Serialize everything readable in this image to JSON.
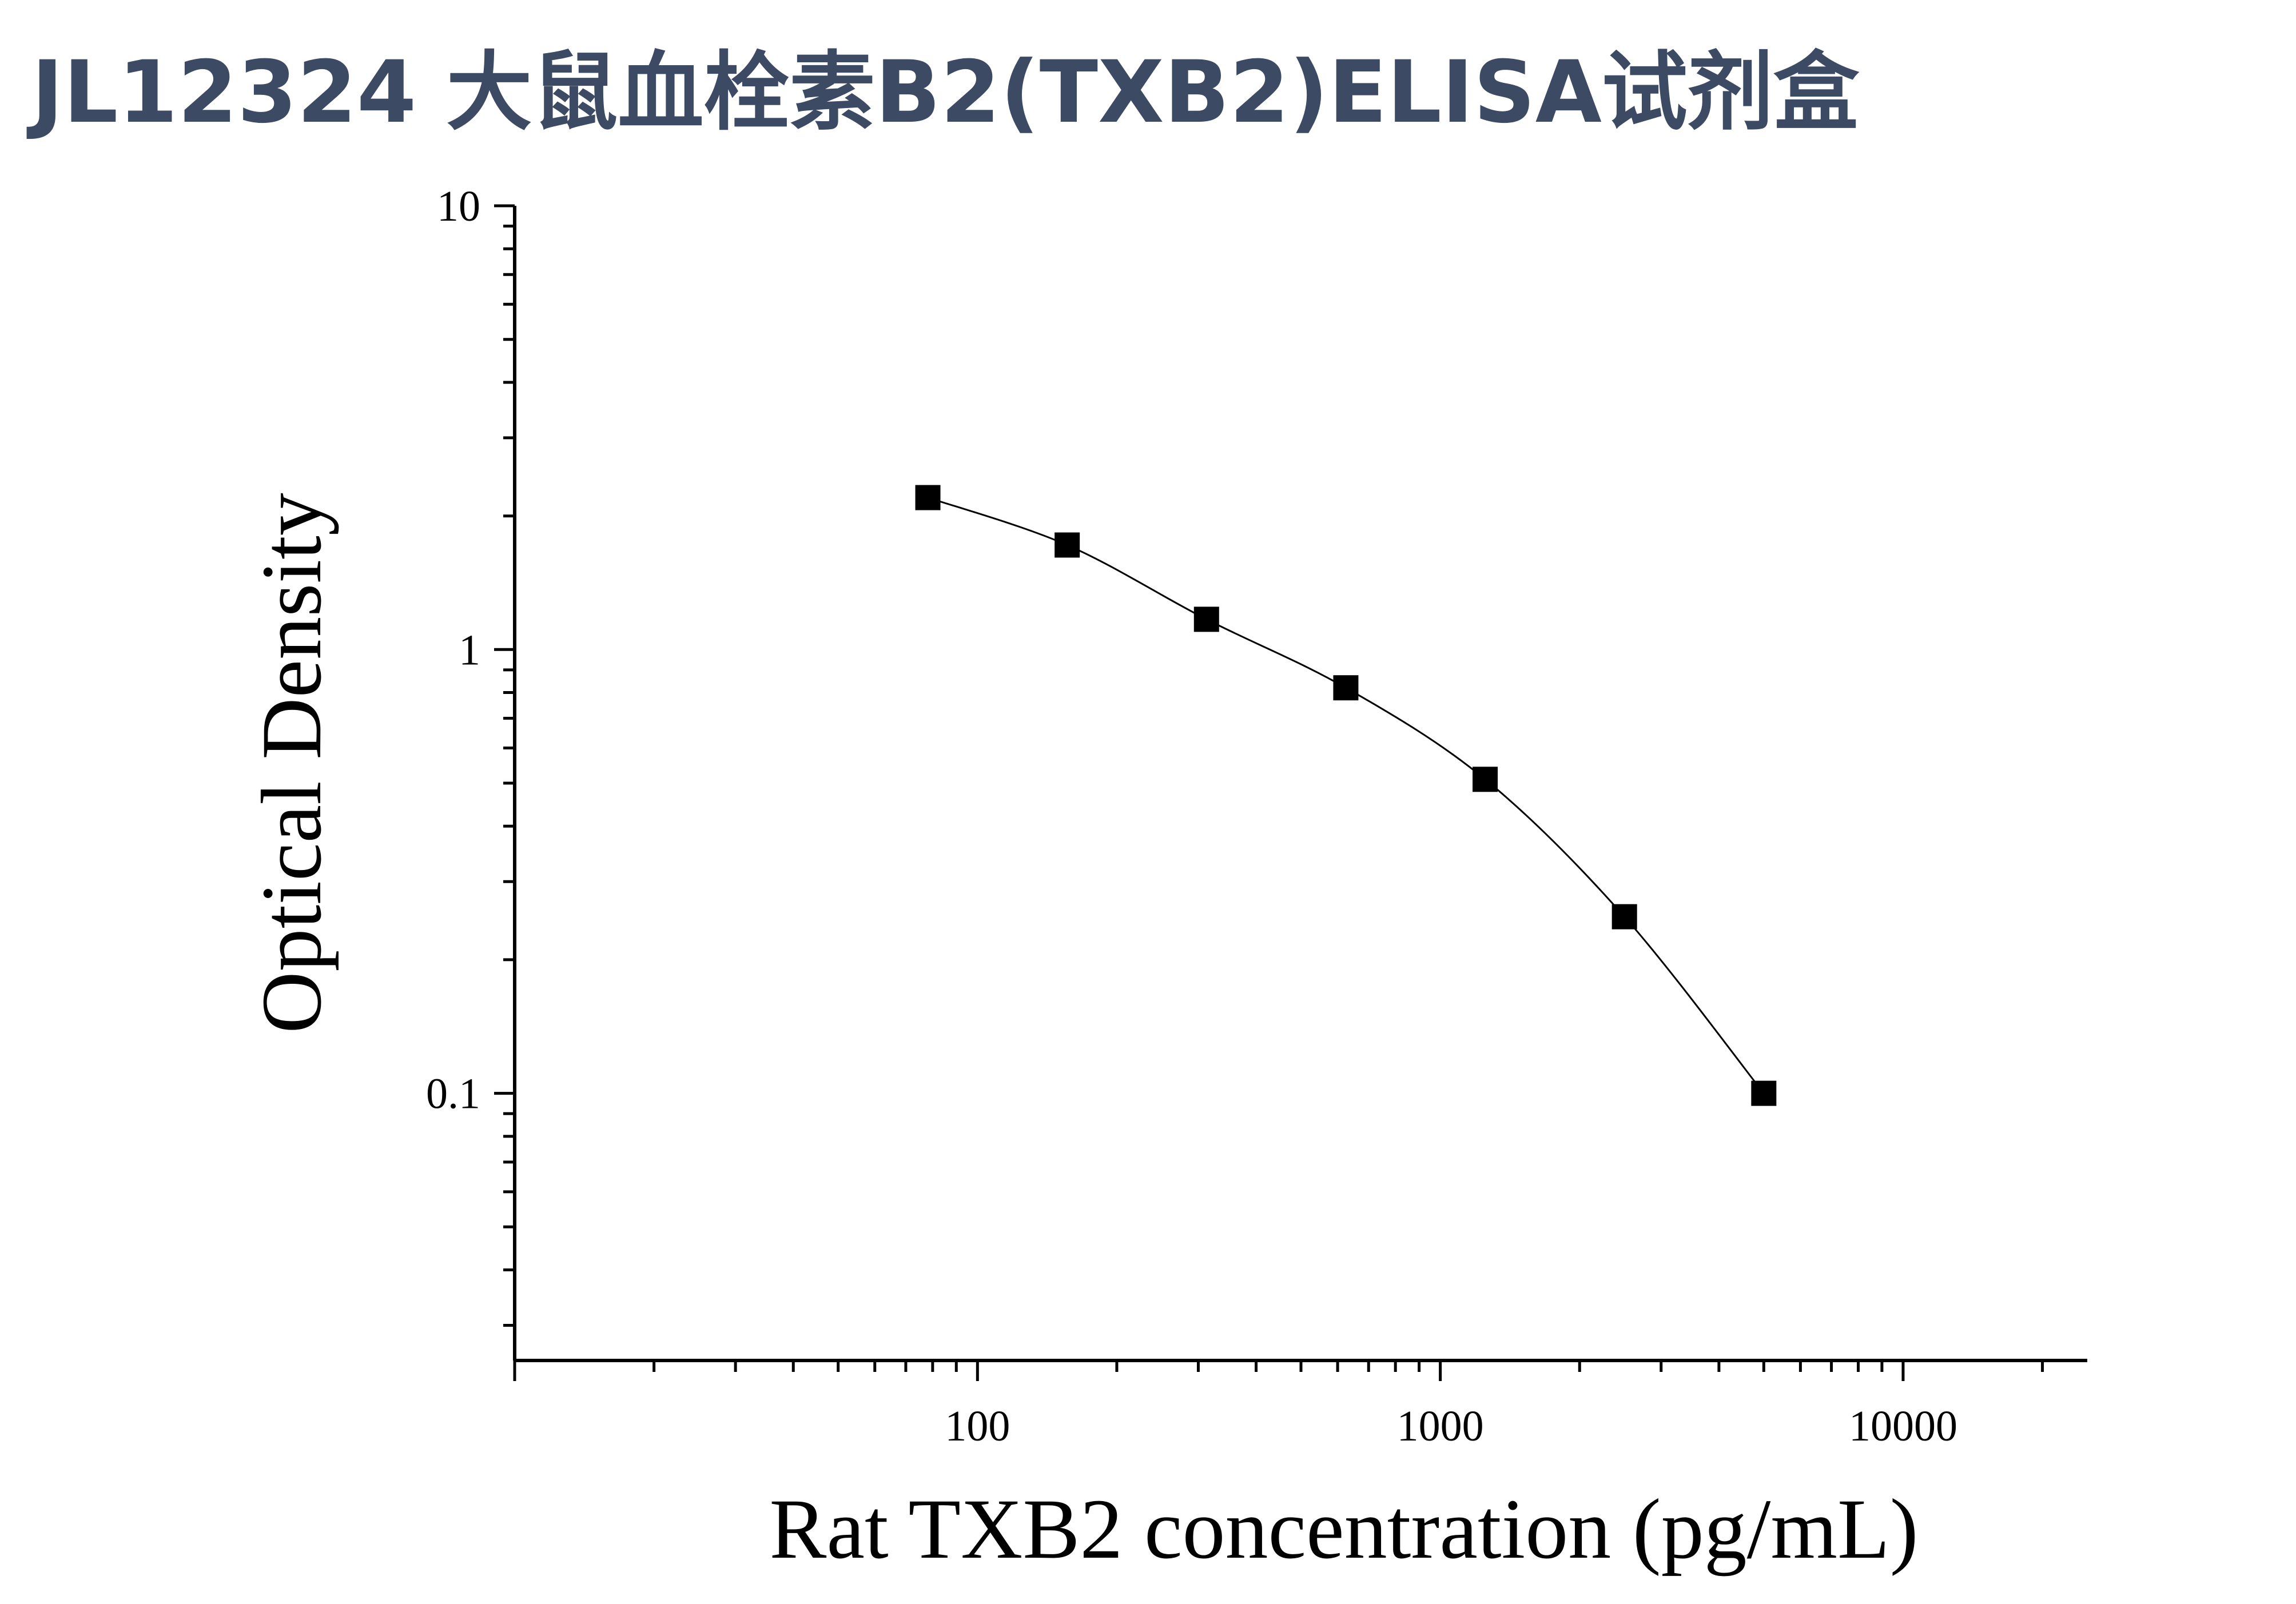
{
  "title": "JL12324 大鼠血栓素B2(TXB2)ELISA试剂盒",
  "chart_data": {
    "type": "scatter",
    "xlabel": "Rat TXB2 concentration (pg/mL)",
    "ylabel": "Optical Density",
    "x_scale": "log",
    "y_scale": "log",
    "xlim": [
      10,
      25000
    ],
    "ylim": [
      0.025,
      10
    ],
    "x_ticks": [
      "100",
      "1000",
      "10000"
    ],
    "y_ticks": [
      "0.1",
      "1",
      "10"
    ],
    "grid": false,
    "marker_color": "#000000",
    "series": [
      {
        "x": [
          78.125,
          156.25,
          312.5,
          625,
          1250,
          2500,
          5000
        ],
        "y": [
          2.2,
          1.72,
          1.17,
          0.82,
          0.51,
          0.25,
          0.1
        ]
      }
    ]
  }
}
